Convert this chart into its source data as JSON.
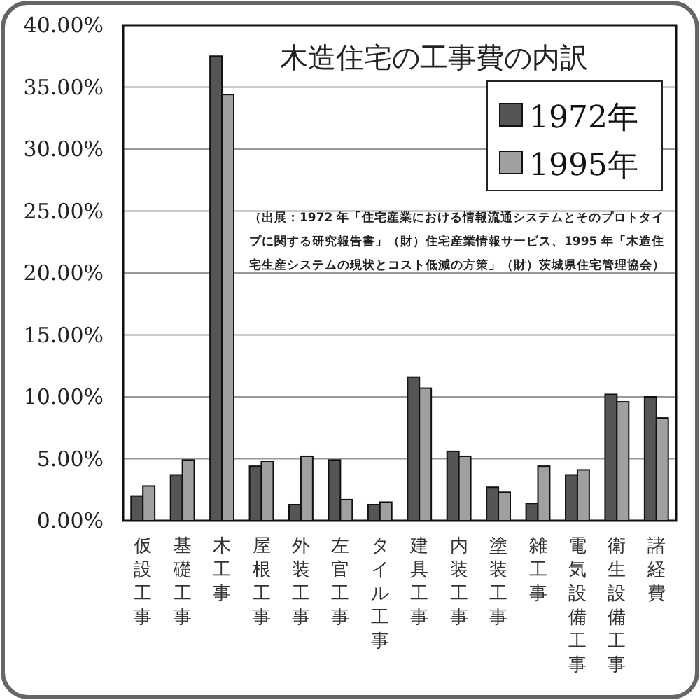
{
  "chart_data": {
    "type": "bar",
    "title": "木造住宅の工事費の内訳",
    "categories": [
      "仮設工事",
      "基礎工事",
      "木工事",
      "屋根工事",
      "外装工事",
      "左官工事",
      "タイル工事",
      "建具工事",
      "内装工事",
      "塗装工事",
      "雑工事",
      "電気設備工事",
      "衛生設備工事",
      "諸経費"
    ],
    "series": [
      {
        "name": "1972年",
        "color": "#555555",
        "values": [
          2.0,
          3.7,
          37.5,
          4.4,
          1.3,
          4.9,
          1.3,
          11.6,
          5.6,
          2.7,
          1.4,
          3.7,
          10.2,
          10.0
        ]
      },
      {
        "name": "1995年",
        "color": "#a0a0a0",
        "values": [
          2.8,
          4.9,
          34.4,
          4.8,
          5.2,
          1.7,
          1.5,
          10.7,
          5.2,
          2.3,
          4.4,
          4.1,
          9.6,
          8.3
        ]
      }
    ],
    "ylim": [
      0,
      40
    ],
    "yticks": [
      {
        "value": 0,
        "label": "0.00%"
      },
      {
        "value": 5,
        "label": "5.00%"
      },
      {
        "value": 10,
        "label": "10.00%"
      },
      {
        "value": 15,
        "label": "15.00%"
      },
      {
        "value": 20,
        "label": "20.00%"
      },
      {
        "value": 25,
        "label": "25.00%"
      },
      {
        "value": 30,
        "label": "30.00%"
      },
      {
        "value": 35,
        "label": "35.00%"
      },
      {
        "value": 40,
        "label": "40.00%"
      }
    ],
    "grid": "y",
    "legend": "top right",
    "annotations": [
      "（出展：1972 年「住宅産業における情報流通システムとそのプロトタイプに関する研究報告書」（財）住宅産業情報サービス、1995 年「木造住宅生産システムの現状とコスト低減の方策」（財）茨城県住宅管理協会）"
    ]
  }
}
